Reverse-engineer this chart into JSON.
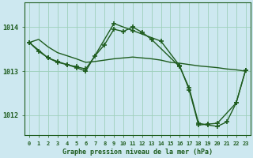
{
  "background_color": "#cde8f0",
  "grid_color": "#9ecfbb",
  "line_color": "#1e5c1e",
  "xlabel": "Graphe pression niveau de la mer (hPa)",
  "xlim": [
    -0.5,
    23.5
  ],
  "ylim": [
    1011.55,
    1014.55
  ],
  "yticks": [
    1012,
    1013,
    1014
  ],
  "xticks": [
    0,
    1,
    2,
    3,
    4,
    5,
    6,
    7,
    8,
    9,
    10,
    11,
    12,
    13,
    14,
    15,
    16,
    17,
    18,
    19,
    20,
    21,
    22,
    23
  ],
  "series": [
    {
      "x": [
        0,
        1,
        2,
        3,
        4,
        5,
        6,
        7,
        8,
        9,
        10,
        11,
        12,
        13,
        14,
        15,
        16,
        17,
        18,
        19,
        20,
        21,
        22,
        23
      ],
      "y": [
        1013.65,
        1013.72,
        1013.55,
        1013.42,
        1013.35,
        1013.28,
        1013.2,
        1013.22,
        1013.25,
        1013.28,
        1013.3,
        1013.32,
        1013.3,
        1013.28,
        1013.25,
        1013.2,
        1013.18,
        1013.15,
        1013.12,
        1013.1,
        1013.08,
        1013.05,
        1013.03,
        1013.0
      ],
      "marker": null,
      "markersize": 4,
      "linewidth": 1.0
    },
    {
      "x": [
        0,
        1,
        2,
        3,
        4,
        5,
        6,
        7,
        8,
        9,
        10,
        11,
        12,
        13,
        16,
        17,
        18,
        19,
        20,
        21,
        22,
        23
      ],
      "y": [
        1013.65,
        1013.45,
        1013.3,
        1013.2,
        1013.15,
        1013.1,
        1013.05,
        1013.35,
        1013.6,
        1013.95,
        1013.9,
        1014.0,
        1013.88,
        1013.72,
        1013.1,
        1012.62,
        1011.82,
        1011.78,
        1011.75,
        1011.85,
        1012.28,
        1013.02
      ],
      "marker": "+",
      "markersize": 5,
      "linewidth": 1.0
    },
    {
      "x": [
        0,
        2,
        3,
        4,
        5,
        6,
        9,
        11,
        14,
        16,
        17,
        18,
        19,
        20,
        22,
        23
      ],
      "y": [
        1013.65,
        1013.3,
        1013.22,
        1013.15,
        1013.08,
        1013.0,
        1014.08,
        1013.92,
        1013.68,
        1013.12,
        1012.58,
        1011.78,
        1011.8,
        1011.82,
        1012.28,
        1013.02
      ],
      "marker": "+",
      "markersize": 5,
      "linewidth": 1.0
    }
  ],
  "tick_fontsize": 5,
  "xlabel_fontsize": 6,
  "ytick_fontsize": 6
}
